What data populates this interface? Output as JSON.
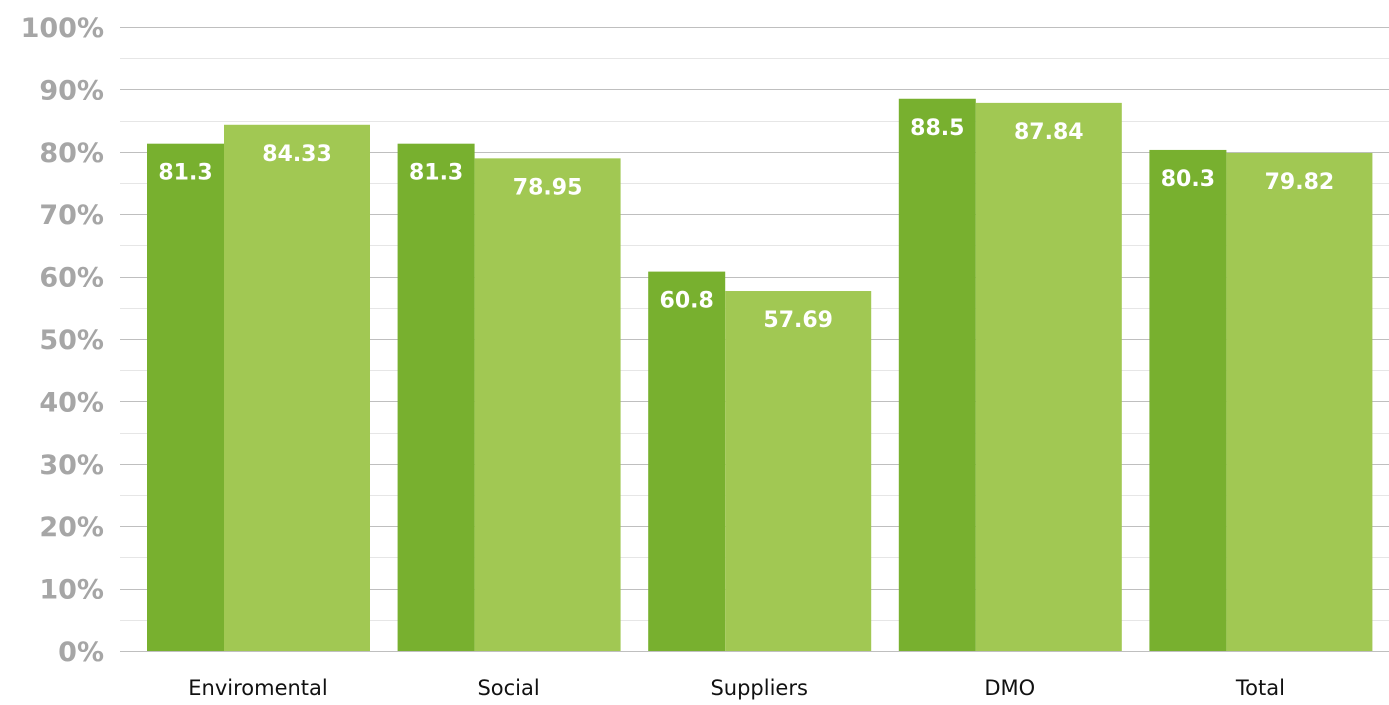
{
  "colors": {
    "series_dark": "#78b02f",
    "series_light": "#a1c853",
    "y_tick_text": "#a6a6a6",
    "x_tick_text": "#111111",
    "label_text": "#ffffff"
  },
  "chart_data": {
    "type": "bar",
    "title": "",
    "xlabel": "",
    "ylabel": "",
    "categories": [
      "Enviromental",
      "Social",
      "Suppliers",
      "DMO",
      "Total"
    ],
    "series": [
      {
        "values": [
          81.3,
          81.3,
          60.8,
          88.5,
          80.3
        ],
        "labels": [
          "81.3",
          "81.3",
          "60.8",
          "88.5",
          "80.3"
        ]
      },
      {
        "values": [
          84.33,
          78.95,
          57.69,
          87.84,
          79.82
        ],
        "labels": [
          "84.33",
          "78.95",
          "57.69",
          "87.84",
          "79.82"
        ]
      }
    ],
    "ylim": [
      0,
      100
    ],
    "yticks": [
      "0%",
      "10%",
      "20%",
      "30%",
      "40%",
      "50%",
      "60%",
      "70%",
      "80%",
      "90%",
      "100%"
    ],
    "grid": true,
    "legend": "none"
  }
}
